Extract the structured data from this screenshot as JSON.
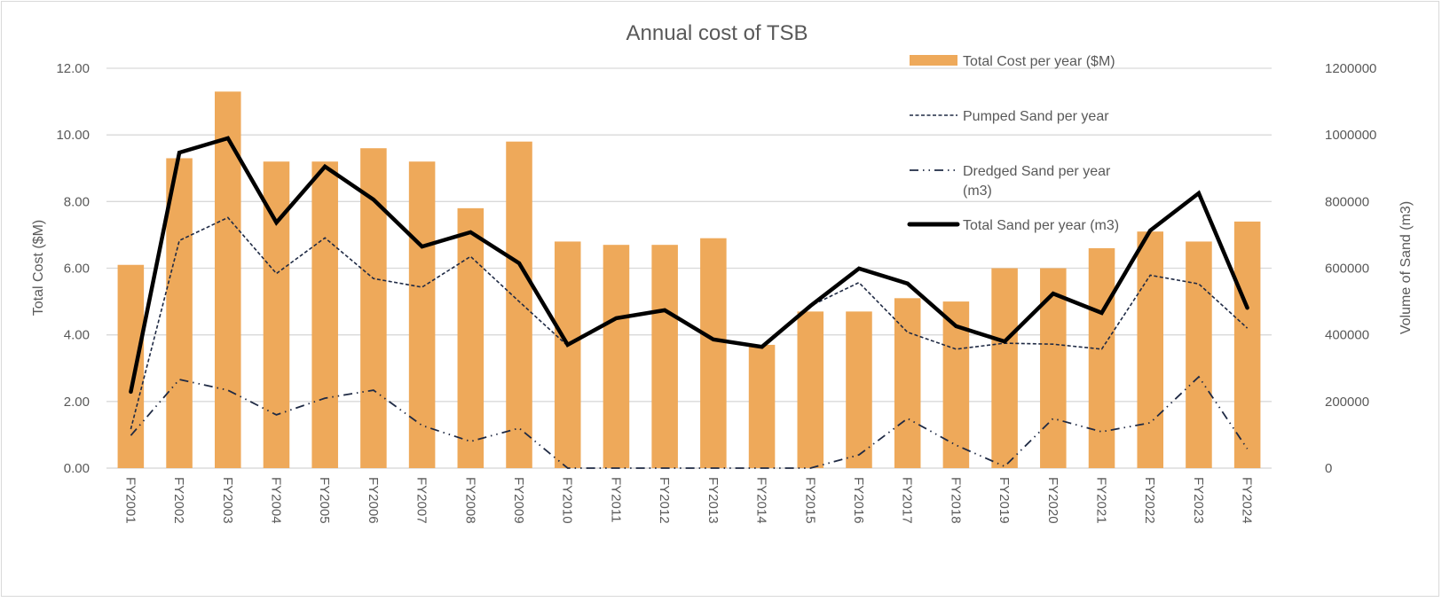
{
  "chart_data": {
    "type": "bar",
    "title": "Annual cost of TSB",
    "xlabel": "",
    "ylabel": "Total Cost ($M)",
    "y2label": "Volume of Sand (m3)",
    "ylim": [
      0,
      12
    ],
    "y2lim": [
      0,
      1200000
    ],
    "yticks": [
      "0.00",
      "2.00",
      "4.00",
      "6.00",
      "8.00",
      "10.00",
      "12.00"
    ],
    "y2ticks": [
      "0",
      "200000",
      "400000",
      "600000",
      "800000",
      "1000000",
      "1200000"
    ],
    "grid": true,
    "legend_position": "top-right",
    "categories": [
      "FY2001",
      "FY2002",
      "FY2003",
      "FY2004",
      "FY2005",
      "FY2006",
      "FY2007",
      "FY2008",
      "FY2009",
      "FY2010",
      "FY2011",
      "FY2012",
      "FY2013",
      "FY2014",
      "FY2015",
      "FY2016",
      "FY2017",
      "FY2018",
      "FY2019",
      "FY2020",
      "FY2021",
      "FY2022",
      "FY2023",
      "FY2024"
    ],
    "series": [
      {
        "name": "Total Cost per year ($M)",
        "type": "bar",
        "axis": "left",
        "color": "#EEA95A",
        "values": [
          6.1,
          9.3,
          11.3,
          9.2,
          9.2,
          9.6,
          9.2,
          7.8,
          9.8,
          6.8,
          6.7,
          6.7,
          6.9,
          3.7,
          4.7,
          4.7,
          5.1,
          5.0,
          6.0,
          6.0,
          6.6,
          7.1,
          6.8,
          7.4
        ]
      },
      {
        "name": "Pumped Sand per year",
        "type": "line",
        "style": "dashed",
        "axis": "right",
        "color": "#1F2A44",
        "values": [
          117000,
          683000,
          752000,
          584000,
          691000,
          569000,
          543000,
          635000,
          500000,
          367000,
          450000,
          474000,
          386000,
          364000,
          487000,
          557000,
          408000,
          357000,
          375000,
          372000,
          357000,
          579000,
          553000,
          420000
        ]
      },
      {
        "name": "Dredged Sand per year (m3)",
        "type": "line",
        "style": "dash-dot-dot",
        "axis": "right",
        "color": "#1F2A44",
        "values": [
          98000,
          266000,
          234000,
          160000,
          210000,
          234000,
          128000,
          80000,
          120000,
          0,
          0,
          0,
          0,
          0,
          0,
          40000,
          149000,
          69000,
          5000,
          149000,
          109000,
          136000,
          274000,
          58000
        ]
      },
      {
        "name": "Total Sand per year (m3)",
        "type": "line",
        "style": "solid-thick",
        "axis": "right",
        "color": "#000000",
        "values": [
          229000,
          947000,
          990000,
          737000,
          905000,
          806000,
          665000,
          708000,
          615000,
          370000,
          450000,
          474000,
          386000,
          364000,
          487000,
          599000,
          554000,
          426000,
          380000,
          524000,
          466000,
          713000,
          825000,
          481000
        ]
      }
    ],
    "legend": [
      {
        "label": "Total Cost per year ($M)",
        "symbol": "bar"
      },
      {
        "label": "Pumped Sand per year",
        "symbol": "dashed"
      },
      {
        "label": "Dredged Sand per year (m3)",
        "symbol": "dash-dot-dot"
      },
      {
        "label": "Total Sand per year (m3)",
        "symbol": "solid-thick"
      }
    ]
  },
  "legend_lines": {
    "cost": "Total Cost per year ($M)",
    "pumped": "Pumped Sand per year",
    "dredged_1": "Dredged Sand per year",
    "dredged_2": "(m3)",
    "total": "Total Sand per year (m3)"
  }
}
